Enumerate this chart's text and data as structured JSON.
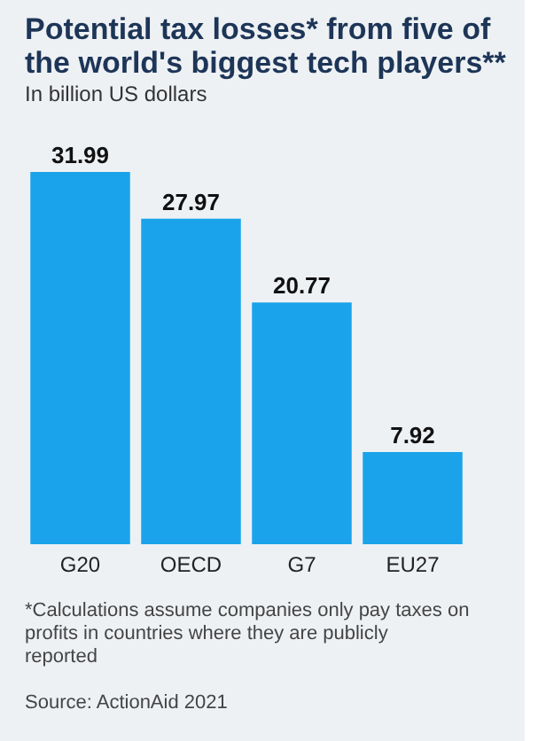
{
  "chart_data": {
    "type": "bar",
    "title": "Potential tax losses* from five of the world's biggest tech players**",
    "subtitle": "In billion US dollars",
    "categories": [
      "G20",
      "OECD",
      "G7",
      "EU27"
    ],
    "values": [
      31.99,
      27.97,
      20.77,
      7.92
    ],
    "color": "#1aa3ea",
    "data_labels": true,
    "grid": false,
    "annotations": [
      "*Calculations assume companies only pay taxes on profits in countries where they are publicly reported",
      "Source: ActionAid 2021"
    ]
  }
}
